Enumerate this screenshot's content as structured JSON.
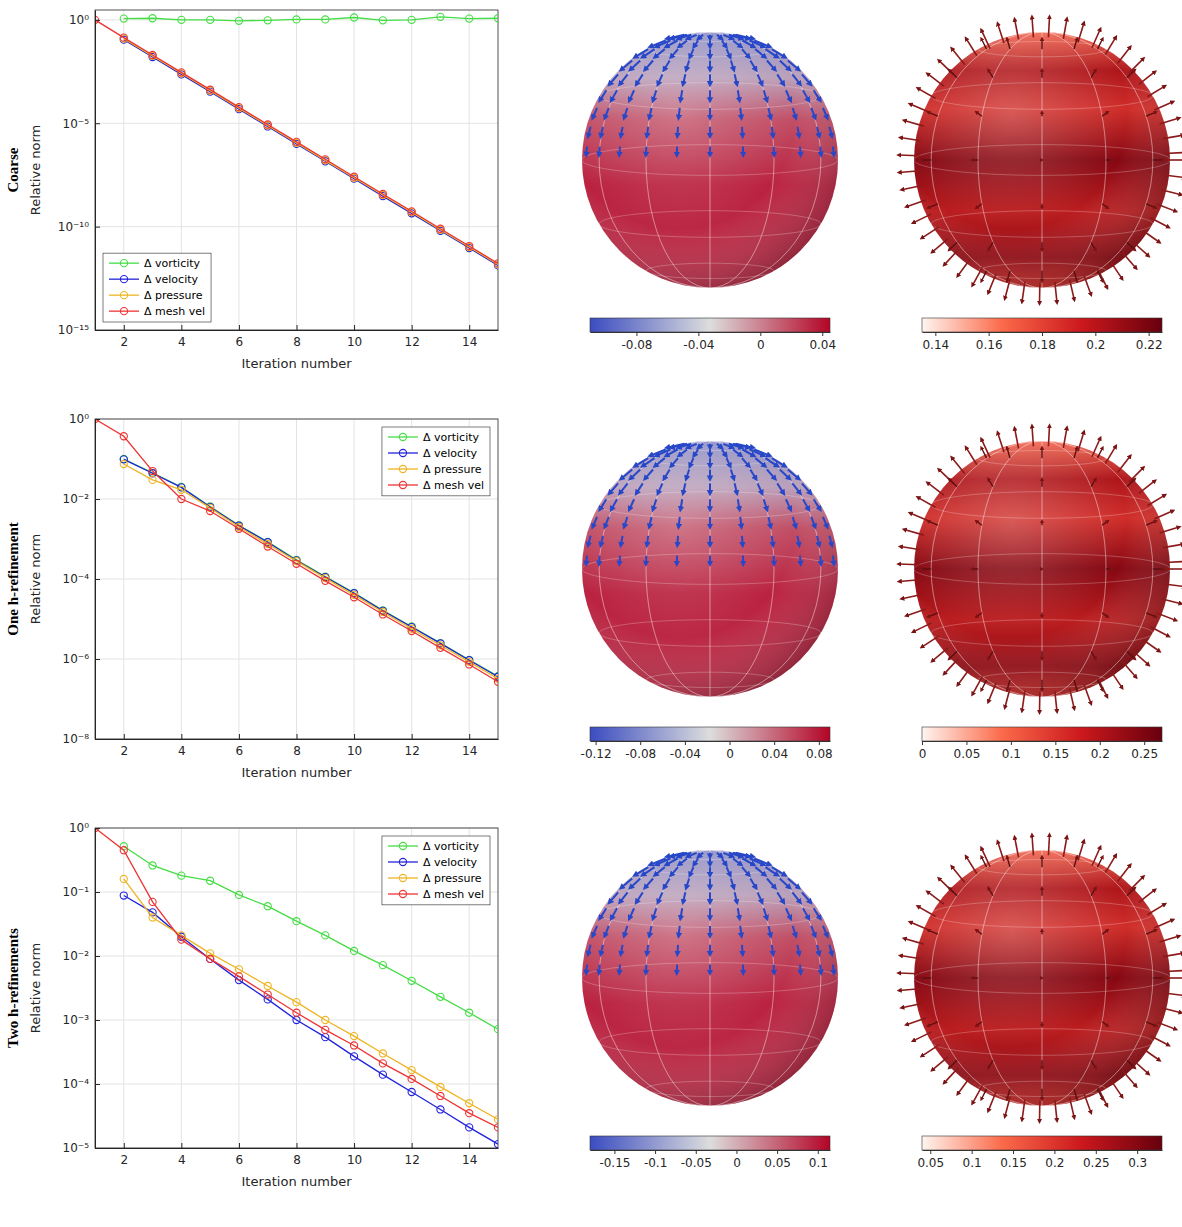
{
  "chart_data": [
    {
      "type": "line",
      "title": "Coarse",
      "xlabel": "Iteration number",
      "ylabel": "Relative norm",
      "x": [
        1,
        2,
        3,
        4,
        5,
        6,
        7,
        8,
        9,
        10,
        11,
        12,
        13,
        14,
        15
      ],
      "xlim": [
        1,
        15
      ],
      "xticks": [
        2,
        4,
        6,
        8,
        10,
        12,
        14
      ],
      "log": "y",
      "ylim": [
        1e-15,
        3
      ],
      "yticks": [
        {
          "value": 1,
          "label": "10⁰"
        },
        {
          "value": 1e-05,
          "label": "10⁻⁵"
        },
        {
          "value": 1e-10,
          "label": "10⁻¹⁰"
        },
        {
          "value": 1e-15,
          "label": "10⁻¹⁵"
        }
      ],
      "grid": true,
      "legend": "lower left",
      "series": [
        {
          "name": "Δ vorticity",
          "color": "#44dd44",
          "marker": "circle",
          "line_style": "solid",
          "values": [
            null,
            1.15,
            1.2,
            1.0,
            1.0,
            0.9,
            0.95,
            1.05,
            1.05,
            1.3,
            0.95,
            1.0,
            1.4,
            1.15,
            1.2
          ]
        },
        {
          "name": "Δ velocity",
          "color": "#2222dd",
          "marker": "circle",
          "line_style": "solid",
          "values": [
            null,
            0.11,
            0.016,
            0.0023,
            0.00034,
            4.8e-05,
            7e-06,
            1e-06,
            1.45e-07,
            2.1e-08,
            3e-09,
            4.4e-10,
            6.3e-11,
            9.2e-12,
            1.33e-12
          ]
        },
        {
          "name": "Δ pressure",
          "color": "#eeb422",
          "marker": "circle",
          "line_style": "solid",
          "values": [
            null,
            0.124,
            0.018,
            0.0026,
            0.00038,
            5.4e-05,
            7.8e-06,
            1.13e-06,
            1.6e-07,
            2.3e-08,
            3.4e-09,
            5e-10,
            7.1e-11,
            1.03e-11,
            1.5e-12
          ]
        },
        {
          "name": "Δ mesh vel",
          "color": "#ee3333",
          "marker": "circle",
          "line_style": "solid",
          "values": [
            1,
            0.138,
            0.02,
            0.0029,
            0.00042,
            6e-05,
            8.7e-06,
            1.26e-06,
            1.8e-07,
            2.6e-08,
            3.8e-09,
            5.5e-10,
            7.9e-11,
            1.15e-11,
            1.66e-12
          ]
        }
      ]
    },
    {
      "type": "line",
      "title": "One h-refinement",
      "xlabel": "Iteration number",
      "ylabel": "Relative norm",
      "x": [
        1,
        2,
        3,
        4,
        5,
        6,
        7,
        8,
        9,
        10,
        11,
        12,
        13,
        14,
        15
      ],
      "xlim": [
        1,
        15
      ],
      "xticks": [
        2,
        4,
        6,
        8,
        10,
        12,
        14
      ],
      "log": "y",
      "ylim": [
        1e-08,
        1
      ],
      "yticks": [
        {
          "value": 1,
          "label": "10⁰"
        },
        {
          "value": 0.01,
          "label": "10⁻²"
        },
        {
          "value": 0.0001,
          "label": "10⁻⁴"
        },
        {
          "value": 1e-06,
          "label": "10⁻⁶"
        },
        {
          "value": 1e-08,
          "label": "10⁻⁸"
        }
      ],
      "grid": true,
      "legend": "upper right",
      "series": [
        {
          "name": "Δ vorticity",
          "color": "#44dd44",
          "marker": "circle",
          "line_style": "solid",
          "values": [
            null,
            0.1,
            0.045,
            0.02,
            0.0065,
            0.0022,
            0.00085,
            0.0003,
            0.000115,
            4.5e-05,
            1.65e-05,
            6.5e-06,
            2.5e-06,
            9.5e-07,
            3.7e-07
          ]
        },
        {
          "name": "Δ velocity",
          "color": "#2222dd",
          "marker": "circle",
          "line_style": "solid",
          "values": [
            null,
            0.098,
            0.044,
            0.0195,
            0.0063,
            0.00215,
            0.00083,
            0.00029,
            0.000112,
            4.4e-05,
            1.6e-05,
            6.3e-06,
            2.45e-06,
            9.3e-07,
            3.6e-07
          ]
        },
        {
          "name": "Δ pressure",
          "color": "#eeb422",
          "marker": "circle",
          "line_style": "solid",
          "values": [
            null,
            0.075,
            0.03,
            0.017,
            0.006,
            0.002,
            0.00075,
            0.00028,
            0.000105,
            4e-05,
            1.5e-05,
            5.7e-06,
            2.2e-06,
            8.5e-07,
            3.2e-07
          ]
        },
        {
          "name": "Δ mesh vel",
          "color": "#ee3333",
          "marker": "circle",
          "line_style": "solid",
          "values": [
            1,
            0.37,
            0.05,
            0.01,
            0.005,
            0.0018,
            0.00065,
            0.00024,
            9e-05,
            3.5e-05,
            1.3e-05,
            5e-06,
            1.9e-06,
            7.3e-07,
            2.7e-07
          ]
        }
      ]
    },
    {
      "type": "line",
      "title": "Two h-refinements",
      "xlabel": "Iteration number",
      "ylabel": "Relative norm",
      "x": [
        1,
        2,
        3,
        4,
        5,
        6,
        7,
        8,
        9,
        10,
        11,
        12,
        13,
        14,
        15
      ],
      "xlim": [
        1,
        15
      ],
      "xticks": [
        2,
        4,
        6,
        8,
        10,
        12,
        14
      ],
      "log": "y",
      "ylim": [
        1e-05,
        1
      ],
      "yticks": [
        {
          "value": 1,
          "label": "10⁰"
        },
        {
          "value": 0.1,
          "label": "10⁻¹"
        },
        {
          "value": 0.01,
          "label": "10⁻²"
        },
        {
          "value": 0.001,
          "label": "10⁻³"
        },
        {
          "value": 0.0001,
          "label": "10⁻⁴"
        },
        {
          "value": 1e-05,
          "label": "10⁻⁵"
        }
      ],
      "grid": true,
      "legend": "upper right",
      "series": [
        {
          "name": "Δ vorticity",
          "color": "#44dd44",
          "marker": "circle",
          "line_style": "solid",
          "values": [
            null,
            0.52,
            0.26,
            0.18,
            0.15,
            0.09,
            0.06,
            0.035,
            0.021,
            0.012,
            0.0072,
            0.0041,
            0.0023,
            0.0013,
            0.00072
          ]
        },
        {
          "name": "Δ velocity",
          "color": "#2222dd",
          "marker": "circle",
          "line_style": "solid",
          "values": [
            null,
            0.088,
            0.048,
            0.02,
            0.009,
            0.0042,
            0.0021,
            0.001,
            0.00054,
            0.00027,
            0.00014,
            7.5e-05,
            4e-05,
            2.1e-05,
            1.15e-05
          ]
        },
        {
          "name": "Δ pressure",
          "color": "#eeb422",
          "marker": "circle",
          "line_style": "solid",
          "values": [
            null,
            0.16,
            0.04,
            0.021,
            0.011,
            0.0062,
            0.0034,
            0.0019,
            0.001,
            0.00056,
            0.0003,
            0.000165,
            9e-05,
            5e-05,
            2.8e-05
          ]
        },
        {
          "name": "Δ mesh vel",
          "color": "#ee3333",
          "marker": "circle",
          "line_style": "solid",
          "values": [
            1,
            0.45,
            0.07,
            0.018,
            0.009,
            0.0048,
            0.0025,
            0.0013,
            0.0007,
            0.0004,
            0.00021,
            0.00012,
            6.5e-05,
            3.5e-05,
            2.1e-05
          ]
        }
      ]
    },
    {
      "type": "colorbar",
      "xlim": [
        -0.11,
        0.045
      ],
      "xticks": [
        -0.08,
        -0.04,
        0,
        0.04
      ],
      "colors": [
        "#3b4cc0",
        "#dcdddd",
        "#b40426"
      ]
    },
    {
      "type": "colorbar",
      "xlim": [
        0.135,
        0.225
      ],
      "xticks": [
        0.14,
        0.16,
        0.18,
        0.2,
        0.22
      ],
      "colors": [
        "#fff5f0",
        "#fb6a4a",
        "#cb181d",
        "#67000d"
      ]
    },
    {
      "type": "colorbar",
      "xlim": [
        -0.125,
        0.09
      ],
      "xticks": [
        -0.12,
        -0.08,
        -0.04,
        0,
        0.04,
        0.08
      ],
      "colors": [
        "#3b4cc0",
        "#dcdddd",
        "#b40426"
      ]
    },
    {
      "type": "colorbar",
      "xlim": [
        0,
        0.27
      ],
      "xticks": [
        0,
        0.05,
        0.1,
        0.15,
        0.2,
        0.25
      ],
      "colors": [
        "#fff5f0",
        "#fb6a4a",
        "#cb181d",
        "#67000d"
      ]
    },
    {
      "type": "colorbar",
      "xlim": [
        -0.18,
        0.115
      ],
      "xticks": [
        -0.15,
        -0.1,
        -0.05,
        0,
        0.05,
        0.1
      ],
      "colors": [
        "#3b4cc0",
        "#dcdddd",
        "#b40426"
      ]
    },
    {
      "type": "colorbar",
      "xlim": [
        0.04,
        0.33
      ],
      "xticks": [
        0.05,
        0.1,
        0.15,
        0.2,
        0.25,
        0.3
      ],
      "colors": [
        "#fff5f0",
        "#fb6a4a",
        "#cb181d",
        "#67000d"
      ]
    }
  ]
}
